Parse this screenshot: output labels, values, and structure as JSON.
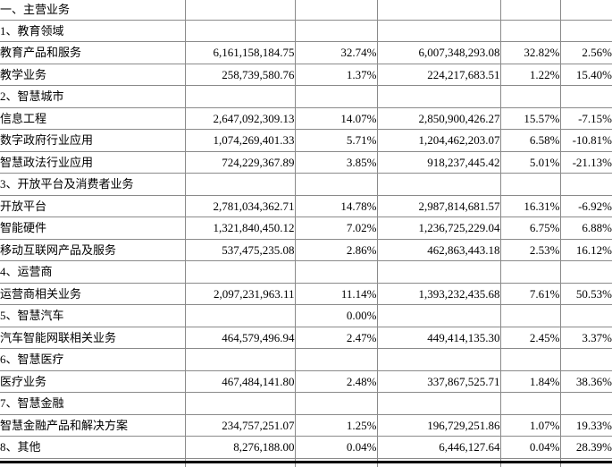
{
  "table": {
    "description_columns": [
      "segment-label",
      "current-period-amount",
      "current-period-ratio",
      "prior-period-amount",
      "prior-period-ratio",
      "yoy-change"
    ],
    "rows": [
      [
        "一、主营业务",
        "",
        "",
        "",
        "",
        ""
      ],
      [
        "1、教育领域",
        "",
        "",
        "",
        "",
        ""
      ],
      [
        "教育产品和服务",
        "6,161,158,184.75",
        "32.74%",
        "6,007,348,293.08",
        "32.82%",
        "2.56%"
      ],
      [
        "教学业务",
        "258,739,580.76",
        "1.37%",
        "224,217,683.51",
        "1.22%",
        "15.40%"
      ],
      [
        "2、智慧城市",
        "",
        "",
        "",
        "",
        ""
      ],
      [
        "信息工程",
        "2,647,092,309.13",
        "14.07%",
        "2,850,900,426.27",
        "15.57%",
        "-7.15%"
      ],
      [
        "数字政府行业应用",
        "1,074,269,401.33",
        "5.71%",
        "1,204,462,203.07",
        "6.58%",
        "-10.81%"
      ],
      [
        "智慧政法行业应用",
        "724,229,367.89",
        "3.85%",
        "918,237,445.42",
        "5.01%",
        "-21.13%"
      ],
      [
        "3、开放平台及消费者业务",
        "",
        "",
        "",
        "",
        ""
      ],
      [
        "开放平台",
        "2,781,034,362.71",
        "14.78%",
        "2,987,814,681.57",
        "16.31%",
        "-6.92%"
      ],
      [
        "智能硬件",
        "1,321,840,450.12",
        "7.02%",
        "1,236,725,229.04",
        "6.75%",
        "6.88%"
      ],
      [
        "移动互联网产品及服务",
        "537,475,235.08",
        "2.86%",
        "462,863,443.18",
        "2.53%",
        "16.12%"
      ],
      [
        "4、运营商",
        "",
        "",
        "",
        "",
        ""
      ],
      [
        "运营商相关业务",
        "2,097,231,963.11",
        "11.14%",
        "1,393,232,435.68",
        "7.61%",
        "50.53%"
      ],
      [
        "5、智慧汽车",
        "",
        "0.00%",
        "",
        "",
        ""
      ],
      [
        "汽车智能网联相关业务",
        "464,579,496.94",
        "2.47%",
        "449,414,135.30",
        "2.45%",
        "3.37%"
      ],
      [
        "6、智慧医疗",
        "",
        "",
        "",
        "",
        ""
      ],
      [
        "医疗业务",
        "467,484,141.80",
        "2.48%",
        "337,867,525.71",
        "1.84%",
        "38.36%"
      ],
      [
        "7、智慧金融",
        "",
        "",
        "",
        "",
        ""
      ],
      [
        "智慧金融产品和解决方案",
        "234,757,251.07",
        "1.25%",
        "196,729,251.86",
        "1.07%",
        "19.33%"
      ],
      [
        "8、其他",
        "8,276,188.00",
        "0.04%",
        "6,446,127.64",
        "0.04%",
        "28.39%"
      ]
    ]
  },
  "colors": {
    "grid_line": "#8a8a8a",
    "bottom_rule": "#000000",
    "text": "#000000",
    "background": "#ffffff"
  }
}
